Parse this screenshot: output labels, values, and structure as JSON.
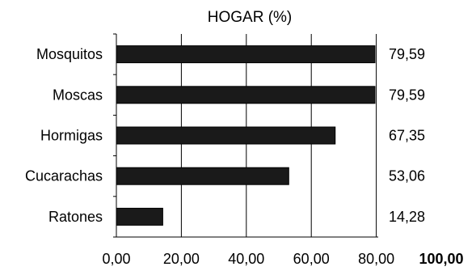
{
  "chart_data": {
    "type": "bar",
    "orientation": "horizontal",
    "title": "HOGAR (%)",
    "xlabel": "",
    "ylabel": "",
    "categories": [
      "Mosquitos",
      "Moscas",
      "Hormigas",
      "Cucarachas",
      "Ratones"
    ],
    "values": [
      79.59,
      79.59,
      67.35,
      53.06,
      14.28
    ],
    "data_labels": [
      "79,59",
      "79,59",
      "67,35",
      "53,06",
      "14,28"
    ],
    "xlim": [
      0,
      100
    ],
    "tick_values": [
      0,
      20,
      40,
      60,
      80,
      100
    ],
    "tick_labels": [
      "0,00",
      "20,00",
      "40,00",
      "60,00",
      "80,00",
      "100,00"
    ],
    "grid": "vertical",
    "legend": "none",
    "bar_color": "#1a1a1a",
    "grid_color": "#000000"
  }
}
